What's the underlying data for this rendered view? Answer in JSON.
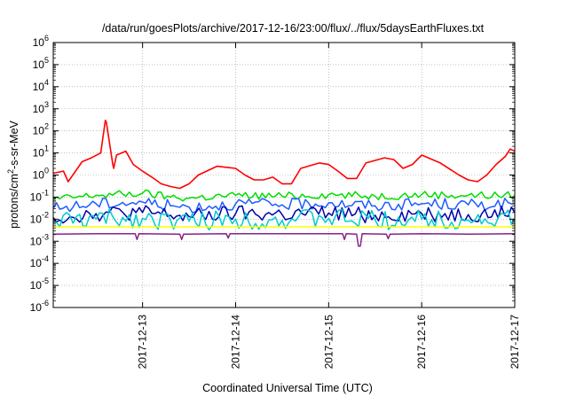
{
  "chart_data": {
    "type": "line",
    "title": "/data/run/goesPlots/archive/2017-12-16/23:00/flux/../flux/5daysEarthFluxes.txt",
    "xlabel": "Coordinated Universal Time (UTC)",
    "ylabel": "protons/cm²-s-sr-MeV",
    "ylabel_parts": {
      "base": "protons/cm",
      "sup": "2",
      "rest": "-s-sr-MeV"
    },
    "x_ticks": [
      "2017-12-13",
      "2017-12-14",
      "2017-12-15",
      "2017-12-16",
      "2017-12-17"
    ],
    "xlim_days": [
      12.04,
      17.0
    ],
    "y_scale": "log",
    "ylim": [
      1e-06,
      1000000.0
    ],
    "y_ticks": [
      {
        "base": "10",
        "exp": "-6"
      },
      {
        "base": "10",
        "exp": "-5"
      },
      {
        "base": "10",
        "exp": "-4"
      },
      {
        "base": "10",
        "exp": "-3"
      },
      {
        "base": "10",
        "exp": "-2"
      },
      {
        "base": "10",
        "exp": "-1"
      },
      {
        "base": "10",
        "exp": "0"
      },
      {
        "base": "10",
        "exp": "1"
      },
      {
        "base": "10",
        "exp": "2"
      },
      {
        "base": "10",
        "exp": "3"
      },
      {
        "base": "10",
        "exp": "4"
      },
      {
        "base": "10",
        "exp": "5"
      },
      {
        "base": "10",
        "exp": "6"
      }
    ],
    "grid": true,
    "series": [
      {
        "color": "#ff0000",
        "x": [
          12.04,
          12.15,
          12.2,
          12.3,
          12.35,
          12.45,
          12.55,
          12.6,
          12.61,
          12.68,
          12.69,
          12.72,
          12.82,
          12.9,
          13.0,
          13.1,
          13.2,
          13.3,
          13.4,
          13.5,
          13.6,
          13.8,
          14.0,
          14.1,
          14.2,
          14.3,
          14.4,
          14.5,
          14.6,
          14.7,
          14.9,
          15.0,
          15.1,
          15.2,
          15.3,
          15.4,
          15.6,
          15.7,
          15.8,
          15.9,
          16.0,
          16.2,
          16.4,
          16.5,
          16.6,
          16.7,
          16.8,
          16.9,
          16.95,
          17.0
        ],
        "y": [
          1.2,
          1.5,
          0.5,
          2.0,
          4.0,
          6.0,
          10,
          300,
          250,
          3,
          2,
          8,
          12,
          3,
          1.5,
          0.8,
          0.4,
          0.3,
          0.25,
          0.4,
          1.0,
          2.5,
          2.0,
          1.0,
          0.6,
          0.6,
          0.8,
          0.4,
          0.4,
          2.0,
          3.5,
          3.0,
          1.5,
          0.7,
          0.7,
          3.5,
          6.0,
          5.0,
          2.0,
          3.0,
          8.0,
          3.5,
          1.0,
          0.6,
          0.5,
          1.0,
          3.0,
          7.0,
          15,
          12
        ]
      },
      {
        "color": "#00dd00",
        "x": [
          12.04,
          12.5,
          13.0,
          13.3,
          13.5,
          14.0,
          14.5,
          15.0,
          15.5,
          16.0,
          16.5,
          17.0
        ],
        "y": [
          0.08,
          0.12,
          0.15,
          0.1,
          0.09,
          0.12,
          0.11,
          0.13,
          0.11,
          0.13,
          0.12,
          0.12
        ]
      },
      {
        "color": "#1e5cff",
        "x": [
          12.04,
          12.5,
          13.0,
          13.3,
          13.5,
          14.0,
          14.5,
          15.0,
          15.5,
          16.0,
          16.5,
          17.0
        ],
        "y": [
          0.03,
          0.05,
          0.06,
          0.04,
          0.035,
          0.05,
          0.045,
          0.055,
          0.04,
          0.05,
          0.045,
          0.05
        ]
      },
      {
        "color": "#0000aa",
        "x": [
          12.04,
          12.5,
          13.0,
          13.3,
          13.5,
          14.0,
          14.5,
          15.0,
          15.5,
          16.0,
          16.5,
          17.0
        ],
        "y": [
          0.012,
          0.018,
          0.02,
          0.015,
          0.013,
          0.018,
          0.016,
          0.019,
          0.015,
          0.018,
          0.016,
          0.02
        ]
      },
      {
        "color": "#00cccc",
        "x": [
          12.04,
          12.5,
          13.0,
          13.3,
          13.5,
          14.0,
          14.5,
          15.0,
          15.5,
          16.0,
          16.5,
          17.0
        ],
        "y": [
          0.008,
          0.01,
          0.011,
          0.009,
          0.008,
          0.01,
          0.009,
          0.011,
          0.009,
          0.01,
          0.009,
          0.011
        ]
      },
      {
        "color": "#ffff00",
        "x": [
          12.04,
          12.5,
          13.0,
          13.5,
          14.0,
          14.5,
          15.0,
          15.5,
          16.0,
          16.5,
          17.0
        ],
        "y": [
          0.0045,
          0.0045,
          0.0045,
          0.0045,
          0.0045,
          0.0045,
          0.0045,
          0.0045,
          0.0045,
          0.0045,
          0.0045
        ]
      },
      {
        "color": "#882288",
        "x": [
          12.04,
          12.5,
          12.92,
          12.94,
          12.96,
          13.4,
          13.42,
          13.44,
          13.9,
          13.92,
          13.94,
          14.5,
          15.15,
          15.17,
          15.19,
          15.3,
          15.32,
          15.34,
          15.36,
          15.62,
          15.64,
          15.66,
          16.0,
          16.5,
          17.0
        ],
        "y": [
          0.0021,
          0.0022,
          0.0022,
          0.0012,
          0.0022,
          0.0021,
          0.0012,
          0.0021,
          0.0022,
          0.0014,
          0.0022,
          0.0022,
          0.0022,
          0.0012,
          0.0022,
          0.0021,
          0.0006,
          0.0006,
          0.0022,
          0.0021,
          0.0013,
          0.0021,
          0.0022,
          0.0021,
          0.0022
        ]
      }
    ]
  }
}
